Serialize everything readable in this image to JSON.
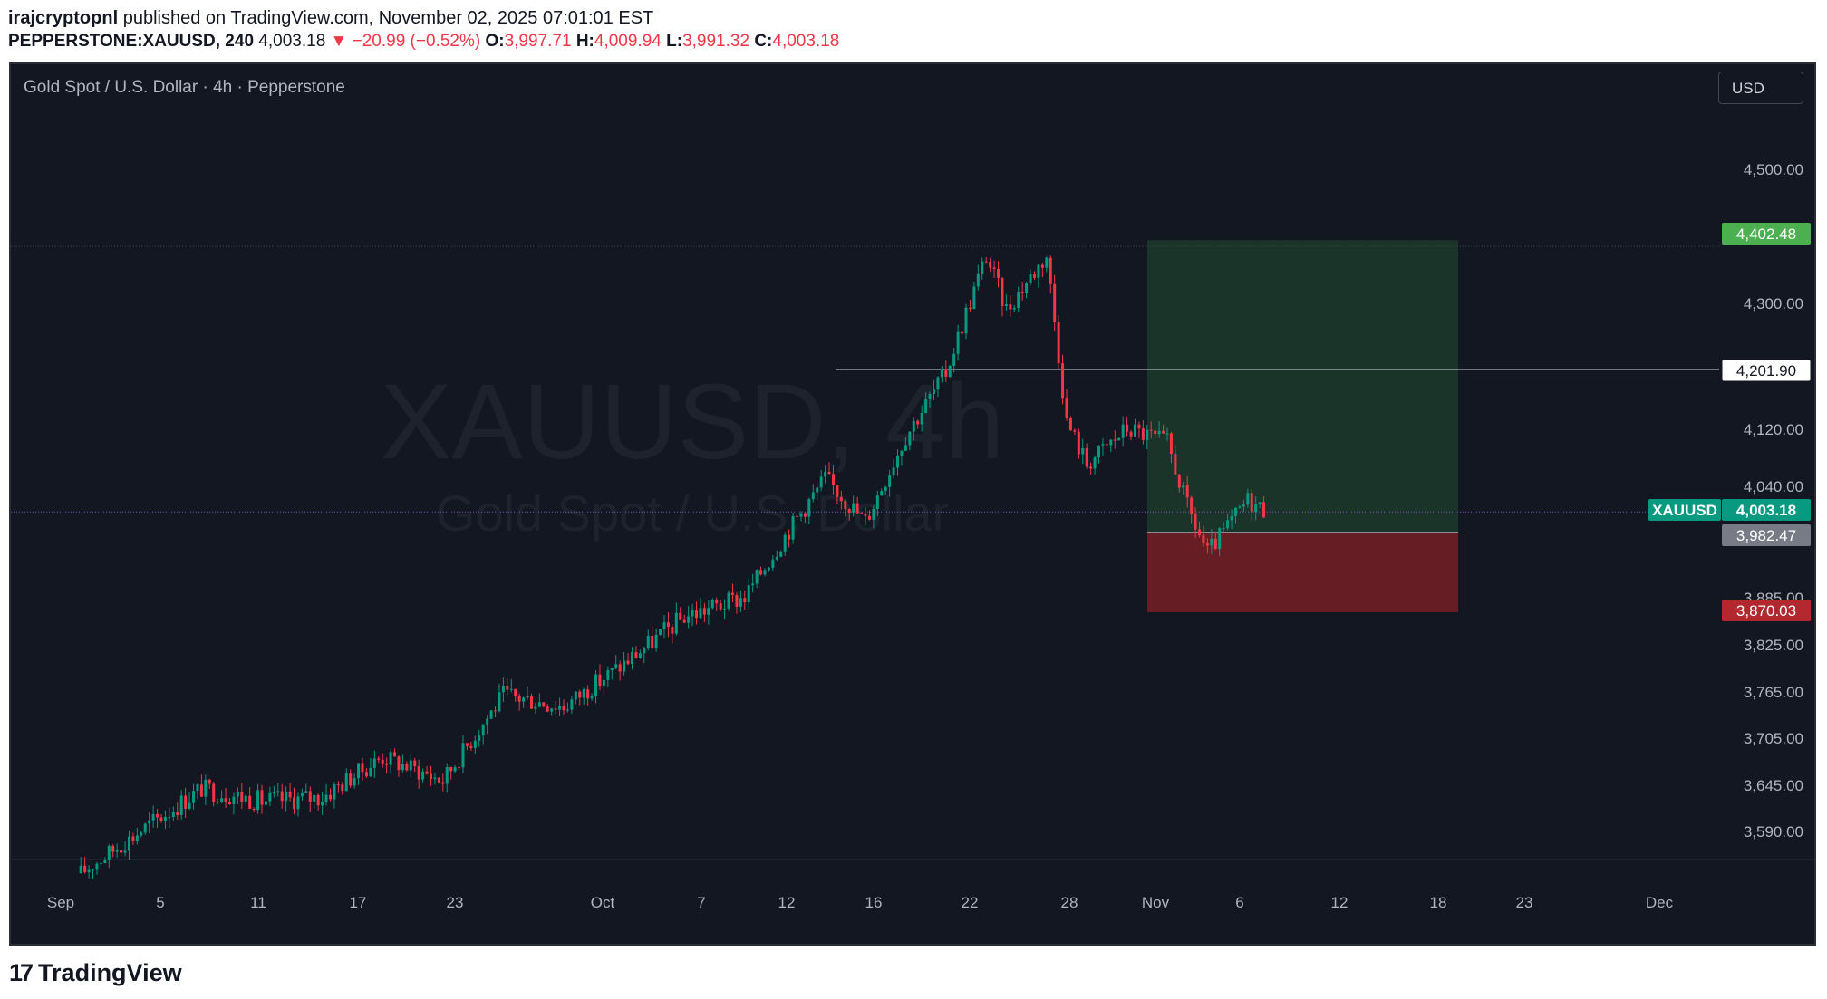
{
  "header": {
    "author": "irajcryptopnl",
    "published_text": " published on TradingView.com, November 02, 2025 07:01:01 EST",
    "symbol": "PEPPERSTONE:XAUUSD, 240",
    "last": "4,003.18",
    "arrow": "▼",
    "change": "−20.99 (−0.52%)",
    "o_label": "O:",
    "o": "3,997.71",
    "h_label": "H:",
    "h": "4,009.94",
    "l_label": "L:",
    "l": "3,991.32",
    "c_label": "C:",
    "c": "4,003.18"
  },
  "chart": {
    "legend": "Gold Spot / U.S. Dollar · 4h · Pepperstone",
    "currency": "USD",
    "watermark_main": "XAUUSD, 4h",
    "watermark_sub": "Gold Spot / U.S. Dollar",
    "colors": {
      "bg": "#131722",
      "up": "#089981",
      "down": "#f23645",
      "target": "#4caf50",
      "stop": "#b2282e"
    }
  },
  "chart_data": {
    "type": "candlestick",
    "symbol": "XAUUSD",
    "interval": "4h",
    "x_ticks": [
      "Sep",
      "5",
      "11",
      "17",
      "23",
      "Oct",
      "7",
      "12",
      "16",
      "22",
      "28",
      "Nov",
      "6",
      "12",
      "18",
      "23",
      "Dec"
    ],
    "y_ticks": [
      "4,500.00",
      "4,300.00",
      "4,120.00",
      "4,040.00",
      "3,885.00",
      "3,825.00",
      "3,765.00",
      "3,705.00",
      "3,645.00",
      "3,590.00"
    ],
    "price_path": [
      {
        "date": "Sep 2",
        "price": 3535
      },
      {
        "date": "Sep 5",
        "price": 3590
      },
      {
        "date": "Sep 8",
        "price": 3640
      },
      {
        "date": "Sep 11",
        "price": 3625
      },
      {
        "date": "Sep 14",
        "price": 3630
      },
      {
        "date": "Sep 17",
        "price": 3680
      },
      {
        "date": "Sep 20",
        "price": 3650
      },
      {
        "date": "Sep 23",
        "price": 3760
      },
      {
        "date": "Sep 26",
        "price": 3745
      },
      {
        "date": "Sep 29",
        "price": 3800
      },
      {
        "date": "Oct 2",
        "price": 3860
      },
      {
        "date": "Oct 5",
        "price": 3885
      },
      {
        "date": "Oct 7",
        "price": 3970
      },
      {
        "date": "Oct 9",
        "price": 4050
      },
      {
        "date": "Oct 11",
        "price": 3990
      },
      {
        "date": "Oct 13",
        "price": 4110
      },
      {
        "date": "Oct 15",
        "price": 4200
      },
      {
        "date": "Oct 17",
        "price": 4370
      },
      {
        "date": "Oct 18",
        "price": 4290
      },
      {
        "date": "Oct 20",
        "price": 4370
      },
      {
        "date": "Oct 21",
        "price": 4130
      },
      {
        "date": "Oct 22",
        "price": 4070
      },
      {
        "date": "Oct 24",
        "price": 4120
      },
      {
        "date": "Oct 26",
        "price": 4100
      },
      {
        "date": "Oct 27",
        "price": 4010
      },
      {
        "date": "Oct 28",
        "price": 3945
      },
      {
        "date": "Oct 30",
        "price": 4020
      },
      {
        "date": "Oct 31",
        "price": 4003.18
      }
    ],
    "price_labels": [
      {
        "text": "4,402.48",
        "role": "target"
      },
      {
        "text": "4,201.90",
        "role": "horizontal-line"
      },
      {
        "text": "XAUUSD",
        "role": "symbol-tag"
      },
      {
        "text": "4,003.18",
        "role": "last-price"
      },
      {
        "text": "3,982.47",
        "role": "entry"
      },
      {
        "text": "3,870.03",
        "role": "stop"
      }
    ],
    "position": {
      "side": "long",
      "entry": 3982.47,
      "target": 4402.48,
      "stop": 3870.03
    }
  },
  "footer": {
    "logo_mark": "17",
    "brand": "TradingView"
  }
}
